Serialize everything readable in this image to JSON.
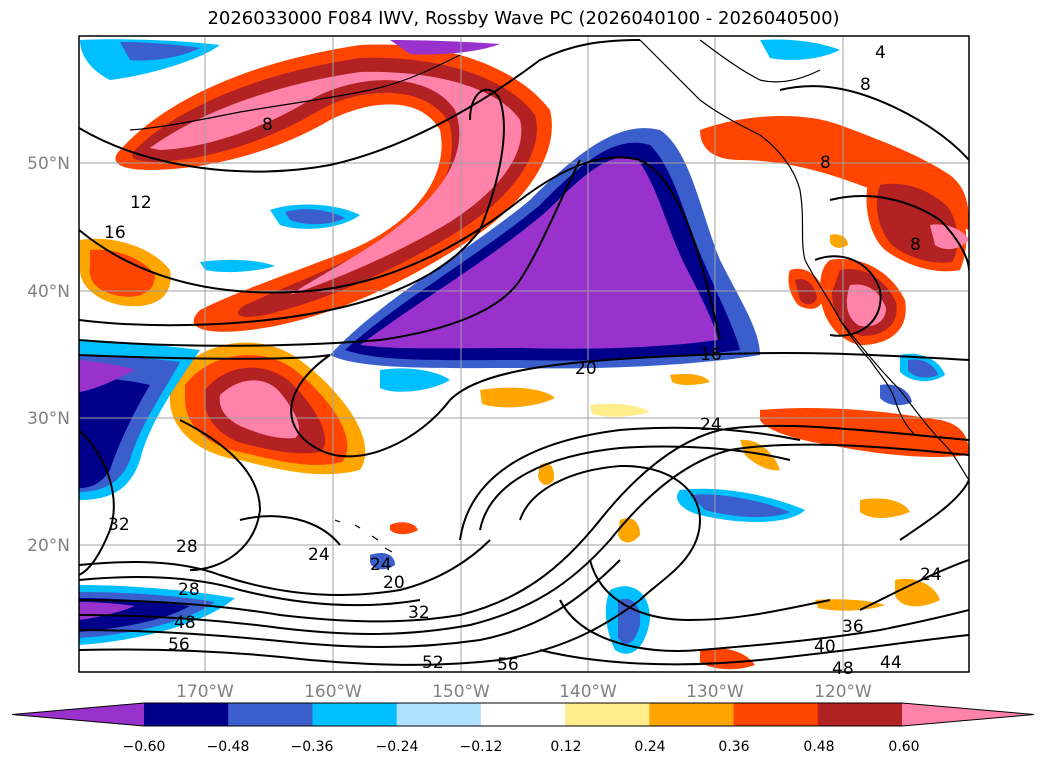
{
  "title": "2026033000 F084 IWV, Rossby Wave PC (2026040100 - 2026040500)",
  "map": {
    "lat_labels": [
      "50°N",
      "40°N",
      "30°N",
      "20°N"
    ],
    "lon_labels": [
      "170°W",
      "160°W",
      "150°W",
      "140°W",
      "130°W",
      "120°W"
    ],
    "contour_labels": [
      "4",
      "8",
      "8",
      "8",
      "8",
      "12",
      "16",
      "16",
      "20",
      "20",
      "24",
      "24",
      "24",
      "24",
      "28",
      "28",
      "32",
      "32",
      "36",
      "40",
      "44",
      "48",
      "48",
      "52",
      "56",
      "56"
    ]
  },
  "colorbar": {
    "ticks": [
      "−0.60",
      "−0.48",
      "−0.36",
      "−0.24",
      "−0.12",
      "0.12",
      "0.24",
      "0.36",
      "0.48",
      "0.60"
    ],
    "colors": [
      "#9932cc",
      "#00008b",
      "#3a5fcd",
      "#00bfff",
      "#b0e2ff",
      "#ffffff",
      "#ffec8b",
      "#ffa500",
      "#ff4500",
      "#b22222",
      "#ff82ab"
    ]
  }
}
